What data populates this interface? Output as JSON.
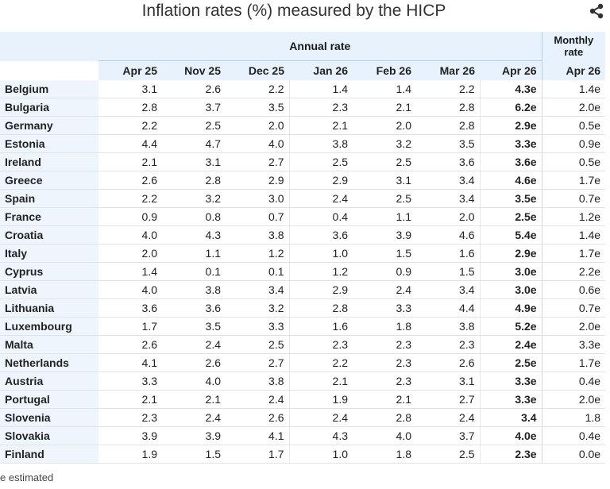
{
  "title": "Inflation rates (%) measured by the HICP",
  "icons": {
    "share": "share-icon"
  },
  "header": {
    "annual_label": "Annual rate",
    "monthly_label_line1": "Monthly",
    "monthly_label_line2": "rate",
    "columns": [
      "Apr 25",
      "Nov 25",
      "Dec 25",
      "Jan 26",
      "Feb 26",
      "Mar 26",
      "Apr 26",
      "Apr 26"
    ]
  },
  "rows": [
    {
      "country": "Belgium",
      "values": [
        "3.1",
        "2.6",
        "2.2",
        "1.4",
        "1.4",
        "2.2",
        "4.3e",
        "1.4e"
      ]
    },
    {
      "country": "Bulgaria",
      "values": [
        "2.8",
        "3.7",
        "3.5",
        "2.3",
        "2.1",
        "2.8",
        "6.2e",
        "2.0e"
      ]
    },
    {
      "country": "Germany",
      "values": [
        "2.2",
        "2.5",
        "2.0",
        "2.1",
        "2.0",
        "2.8",
        "2.9e",
        "0.5e"
      ]
    },
    {
      "country": "Estonia",
      "values": [
        "4.4",
        "4.7",
        "4.0",
        "3.8",
        "3.2",
        "3.5",
        "3.3e",
        "0.9e"
      ]
    },
    {
      "country": "Ireland",
      "values": [
        "2.1",
        "3.1",
        "2.7",
        "2.5",
        "2.5",
        "3.6",
        "3.6e",
        "0.5e"
      ]
    },
    {
      "country": "Greece",
      "values": [
        "2.6",
        "2.8",
        "2.9",
        "2.9",
        "3.1",
        "3.4",
        "4.6e",
        "1.7e"
      ]
    },
    {
      "country": "Spain",
      "values": [
        "2.2",
        "3.2",
        "3.0",
        "2.4",
        "2.5",
        "3.4",
        "3.5e",
        "0.7e"
      ]
    },
    {
      "country": "France",
      "values": [
        "0.9",
        "0.8",
        "0.7",
        "0.4",
        "1.1",
        "2.0",
        "2.5e",
        "1.2e"
      ]
    },
    {
      "country": "Croatia",
      "values": [
        "4.0",
        "4.3",
        "3.8",
        "3.6",
        "3.9",
        "4.6",
        "5.4e",
        "1.4e"
      ]
    },
    {
      "country": "Italy",
      "values": [
        "2.0",
        "1.1",
        "1.2",
        "1.0",
        "1.5",
        "1.6",
        "2.9e",
        "1.7e"
      ]
    },
    {
      "country": "Cyprus",
      "values": [
        "1.4",
        "0.1",
        "0.1",
        "1.2",
        "0.9",
        "1.5",
        "3.0e",
        "2.2e"
      ]
    },
    {
      "country": "Latvia",
      "values": [
        "4.0",
        "3.8",
        "3.4",
        "2.9",
        "2.4",
        "3.4",
        "3.0e",
        "0.6e"
      ]
    },
    {
      "country": "Lithuania",
      "values": [
        "3.6",
        "3.6",
        "3.2",
        "2.8",
        "3.3",
        "4.4",
        "4.9e",
        "0.7e"
      ]
    },
    {
      "country": "Luxembourg",
      "values": [
        "1.7",
        "3.5",
        "3.3",
        "1.6",
        "1.8",
        "3.8",
        "5.2e",
        "2.0e"
      ]
    },
    {
      "country": "Malta",
      "values": [
        "2.6",
        "2.4",
        "2.5",
        "2.3",
        "2.3",
        "2.3",
        "2.4e",
        "3.3e"
      ]
    },
    {
      "country": "Netherlands",
      "values": [
        "4.1",
        "2.6",
        "2.7",
        "2.2",
        "2.3",
        "2.6",
        "2.5e",
        "1.7e"
      ]
    },
    {
      "country": "Austria",
      "values": [
        "3.3",
        "4.0",
        "3.8",
        "2.1",
        "2.3",
        "3.1",
        "3.3e",
        "0.4e"
      ]
    },
    {
      "country": "Portugal",
      "values": [
        "2.1",
        "2.1",
        "2.4",
        "1.9",
        "2.1",
        "2.7",
        "3.3e",
        "2.0e"
      ]
    },
    {
      "country": "Slovenia",
      "values": [
        "2.3",
        "2.4",
        "2.6",
        "2.4",
        "2.8",
        "2.4",
        "3.4",
        "1.8"
      ]
    },
    {
      "country": "Slovakia",
      "values": [
        "3.9",
        "3.9",
        "4.1",
        "4.3",
        "4.0",
        "3.7",
        "4.0e",
        "0.4e"
      ]
    },
    {
      "country": "Finland",
      "values": [
        "1.9",
        "1.5",
        "1.7",
        "1.0",
        "1.8",
        "2.5",
        "2.3e",
        "0.0e"
      ]
    }
  ],
  "footnote": "e estimated"
}
